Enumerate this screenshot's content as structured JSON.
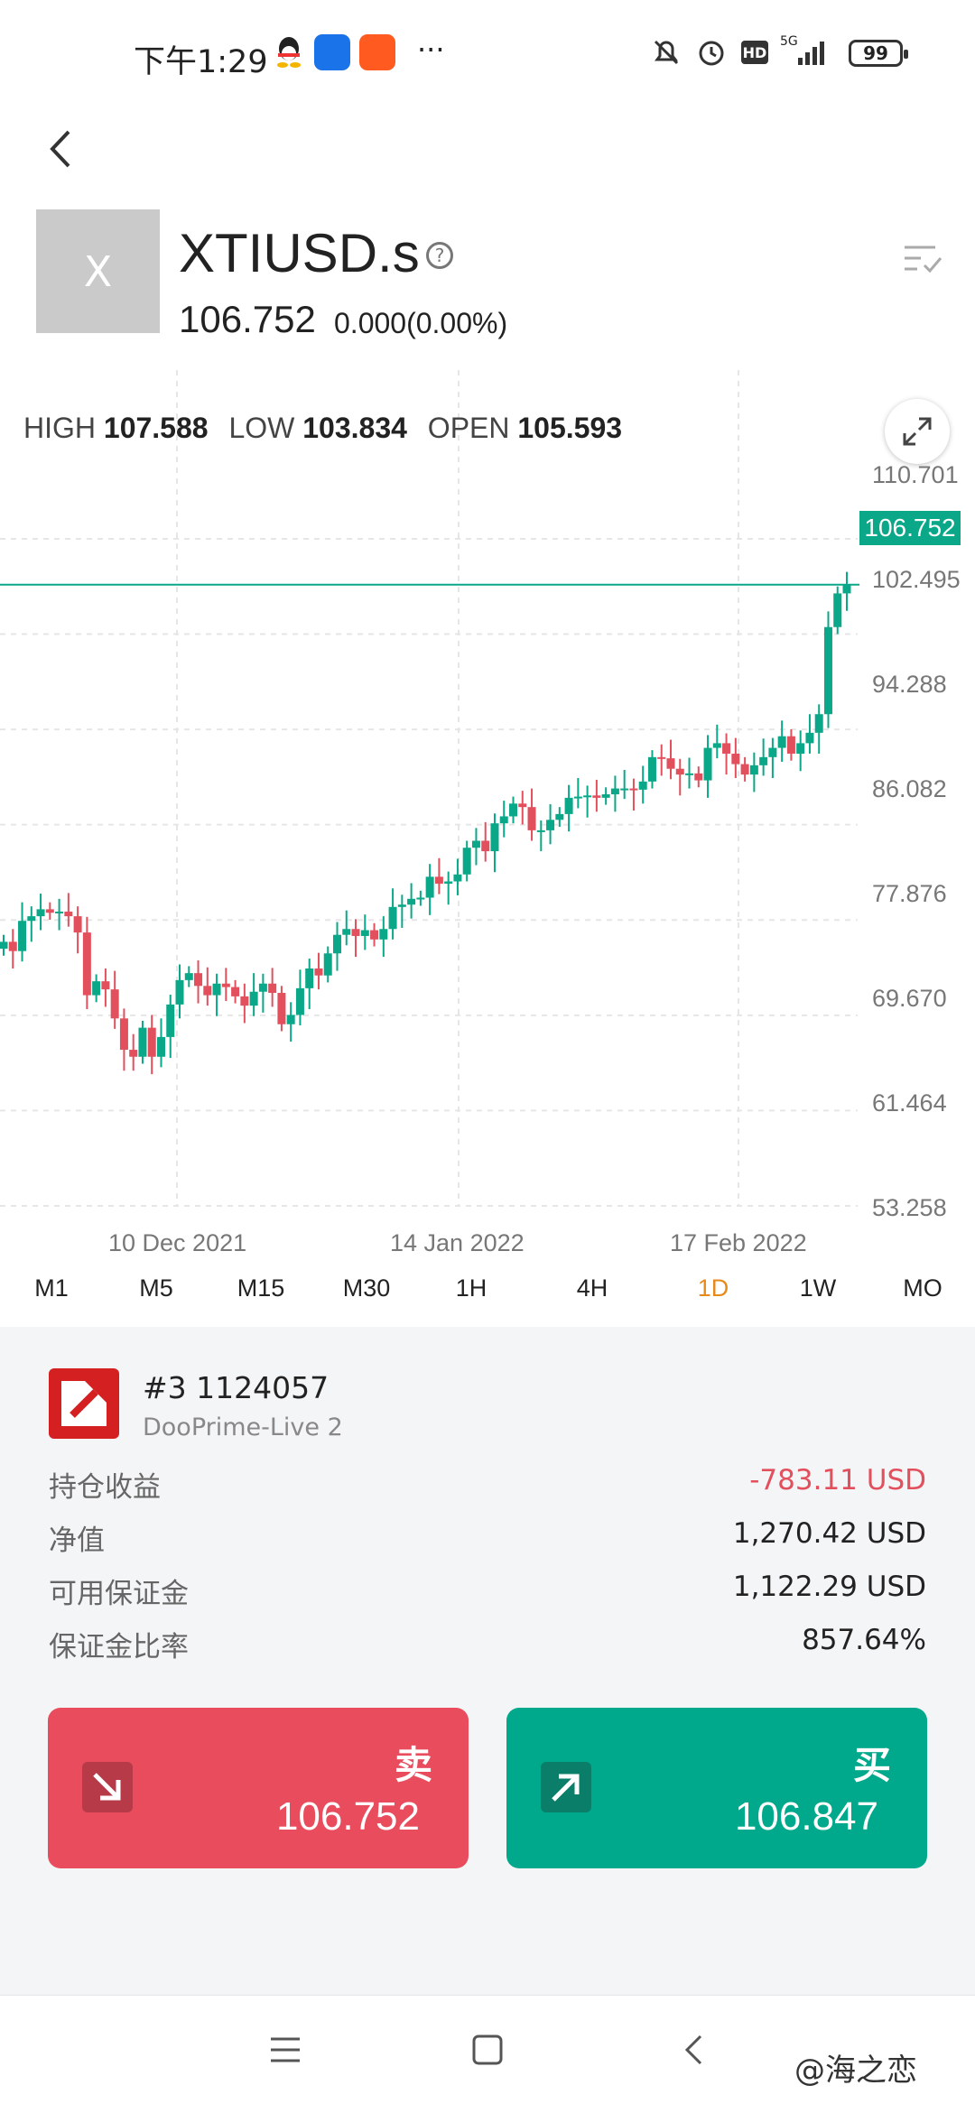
{
  "status_bar": {
    "time": "下午1:29",
    "more": "···",
    "network": "5G",
    "battery": "99"
  },
  "instrument": {
    "avatar_letter": "X",
    "symbol": "XTIUSD.s",
    "price": "106.752",
    "change": "0.000(0.00%)"
  },
  "ohlc": {
    "high_label": "HIGH",
    "high": "107.588",
    "low_label": "LOW",
    "low": "103.834",
    "open_label": "OPEN",
    "open": "105.593"
  },
  "chart_data": {
    "type": "candlestick",
    "y_ticks": [
      "110.701",
      "102.495",
      "94.288",
      "86.082",
      "77.876",
      "69.670",
      "61.464",
      "53.258"
    ],
    "x_ticks": [
      "10 Dec 2021",
      "14 Jan 2022",
      "17 Feb 2022"
    ],
    "current_price": "106.752",
    "ylim": [
      53.258,
      110.701
    ],
    "approx_closes": [
      76.0,
      75.2,
      77.8,
      78.2,
      78.8,
      78.5,
      78.6,
      78.2,
      76.8,
      71.4,
      72.6,
      71.9,
      69.4,
      66.7,
      66.1,
      68.6,
      66.1,
      67.8,
      70.6,
      72.7,
      73.3,
      72.2,
      71.4,
      72.4,
      72.1,
      71.3,
      70.5,
      71.7,
      72.4,
      71.6,
      68.9,
      69.7,
      72.0,
      73.7,
      73.1,
      75.0,
      76.6,
      77.1,
      76.5,
      77.0,
      76.2,
      77.1,
      79.0,
      79.2,
      79.7,
      79.8,
      81.6,
      81.0,
      81.2,
      81.8,
      84.1,
      84.7,
      83.8,
      86.2,
      86.8,
      87.9,
      87.6,
      85.6,
      85.6,
      86.5,
      87.0,
      88.4,
      88.5,
      88.6,
      88.4,
      88.7,
      89.2,
      89.2,
      89.1,
      89.8,
      91.9,
      91.8,
      90.9,
      90.4,
      90.5,
      89.9,
      92.7,
      93.1,
      92.2,
      91.3,
      90.4,
      91.2,
      91.9,
      92.7,
      93.7,
      92.2,
      93.1,
      94.0,
      95.6,
      103.1,
      106.0,
      106.75
    ]
  },
  "timeframes": [
    "M1",
    "M5",
    "M15",
    "M30",
    "1H",
    "4H",
    "1D",
    "1W",
    "MO"
  ],
  "active_timeframe": "1D",
  "account": {
    "id_prefix": "#3",
    "id": "1124057",
    "server": "DooPrime-Live 2",
    "rows": [
      {
        "label": "持仓收益",
        "value": "-783.11 USD",
        "negative": true
      },
      {
        "label": "净值",
        "value": "1,270.42 USD",
        "negative": false
      },
      {
        "label": "可用保证金",
        "value": "1,122.29 USD",
        "negative": false
      },
      {
        "label": "保证金比率",
        "value": "857.64%",
        "negative": false
      }
    ]
  },
  "sell": {
    "label": "卖",
    "price": "106.752"
  },
  "buy": {
    "label": "买",
    "price": "106.847"
  },
  "watermark": "@海之恋",
  "colors": {
    "up": "#0aa889",
    "down": "#e2505e",
    "active_tf": "#e88a1a"
  }
}
